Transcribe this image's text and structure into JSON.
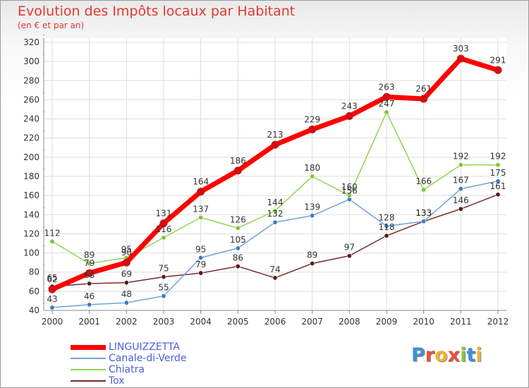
{
  "header": {
    "title": "Evolution des Impôts locaux par Habitant",
    "subtitle": "(en € et par an)"
  },
  "logo": {
    "text": "Proxiti",
    "letters": [
      "P",
      "r",
      "o",
      "x",
      "i",
      "t",
      "i"
    ]
  },
  "colors": {
    "title": "#e0392f",
    "legend_text": "#4a5fd6",
    "axis_labels": "#333333",
    "grid": "#dddddd"
  },
  "chart_data": {
    "type": "line",
    "title": "Evolution des Impôts locaux par Habitant",
    "subtitle": "(en € et par an)",
    "xlabel": "",
    "ylabel": "",
    "x": [
      "2000",
      "2001",
      "2002",
      "2003",
      "2004",
      "2005",
      "2006",
      "2007",
      "2008",
      "2009",
      "2010",
      "2011",
      "2012"
    ],
    "ylim": [
      40,
      320
    ],
    "yticks": [
      40,
      60,
      80,
      100,
      120,
      140,
      160,
      180,
      200,
      220,
      240,
      260,
      280,
      300,
      320
    ],
    "grid": true,
    "legend_position": "bottom-left",
    "series": [
      {
        "name": "LINGUIZZETTA",
        "color": "#ff0000",
        "markerColor": "#d01010",
        "width": 7,
        "values": [
          62,
          79,
          90,
          131,
          164,
          186,
          213,
          229,
          243,
          263,
          261,
          303,
          291
        ],
        "labels": [
          "62",
          "79",
          "90",
          "131",
          "164",
          "186",
          "213",
          "229",
          "243",
          "263",
          "261",
          "303",
          "291"
        ]
      },
      {
        "name": "Canale-di-Verde",
        "color": "#6fa3d8",
        "markerColor": "#3a7cc0",
        "width": 1.5,
        "values": [
          43,
          46,
          48,
          55,
          95,
          105,
          132,
          139,
          156,
          128,
          133,
          167,
          175
        ],
        "labels": [
          "43",
          "46",
          "48",
          "55",
          "95",
          "105",
          "132",
          "139",
          "156",
          "128",
          "133",
          "167",
          "175"
        ]
      },
      {
        "name": "Chiatra",
        "color": "#8fd64f",
        "markerColor": "#7cc63a",
        "width": 1.5,
        "values": [
          112,
          89,
          95,
          116,
          137,
          126,
          144,
          180,
          160,
          247,
          166,
          192,
          192
        ],
        "labels": [
          "112",
          "89",
          "95",
          "116",
          "137",
          "126",
          "144",
          "180",
          "160",
          "247",
          "166",
          "192",
          "192"
        ]
      },
      {
        "name": "Tox",
        "color": "#7a2a2a",
        "markerColor": "#5a1a1a",
        "width": 1.5,
        "values": [
          65,
          68,
          69,
          75,
          79,
          86,
          74,
          89,
          97,
          118,
          133,
          146,
          161
        ],
        "labels": [
          "65",
          "68",
          "69",
          "75",
          "79",
          "86",
          "74",
          "89",
          "97",
          "118",
          "133",
          "146",
          "161"
        ]
      }
    ]
  }
}
